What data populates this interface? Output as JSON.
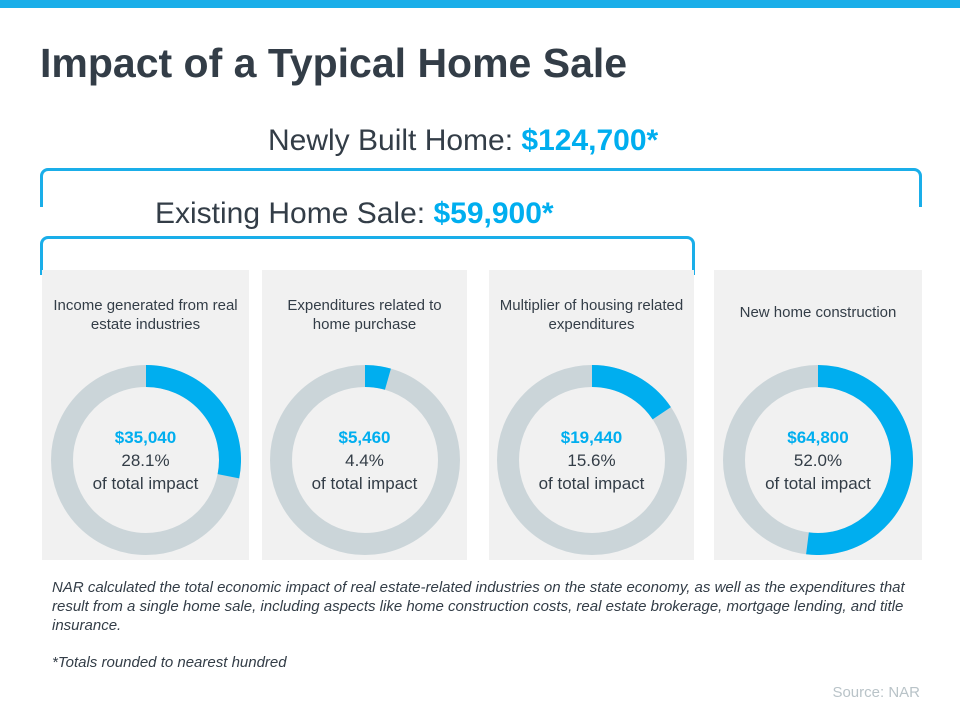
{
  "title": "Impact of a Typical Home Sale",
  "newly_built": {
    "label": "Newly Built Home:",
    "value": "$124,700*"
  },
  "existing": {
    "label": "Existing Home Sale:",
    "value": "$59,900*"
  },
  "colors": {
    "accent": "#00aeef",
    "ring": "#cbd5d9",
    "card": "#f1f1f1"
  },
  "chart_data": {
    "type": "pie",
    "style": "donut",
    "cards": [
      {
        "caption": "Income generated from real estate industries",
        "amount": "$35,040",
        "percent": 28.1,
        "percent_label": "28.1%",
        "sub": "of total impact"
      },
      {
        "caption": "Expenditures related to home purchase",
        "amount": "$5,460",
        "percent": 4.4,
        "percent_label": "4.4%",
        "sub": "of total impact"
      },
      {
        "caption": "Multiplier of housing related expenditures",
        "amount": "$19,440",
        "percent": 15.6,
        "percent_label": "15.6%",
        "sub": "of total impact"
      },
      {
        "caption": "New home construction",
        "amount": "$64,800",
        "percent": 52.0,
        "percent_label": "52.0%",
        "sub": "of total impact"
      }
    ]
  },
  "note": "NAR calculated the total economic impact of real estate-related industries on the state economy, as well as the expenditures that result from a single home sale, including aspects like home construction costs, real estate brokerage, mortgage lending, and title insurance.",
  "footnote": "*Totals rounded to nearest hundred",
  "source": "Source: NAR"
}
